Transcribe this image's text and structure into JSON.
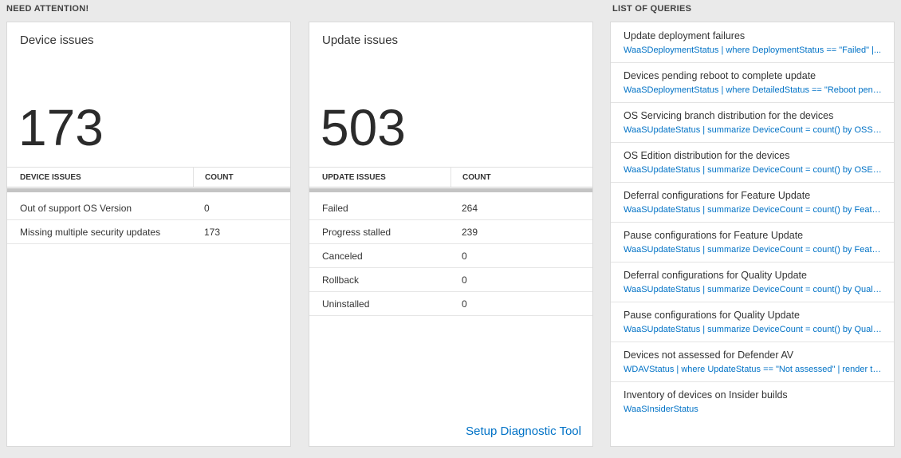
{
  "colors": {
    "link_blue": "#0072c6",
    "page_background": "#eaeaea",
    "big_number_text": "#2b2b2b"
  },
  "sections": {
    "need_attention": "NEED ATTENTION!",
    "list_of_queries": "LIST OF QUERIES"
  },
  "device_card": {
    "title": "Device issues",
    "count": "173",
    "table": {
      "headers": [
        "DEVICE ISSUES",
        "COUNT"
      ],
      "rows": [
        {
          "label": "Out of support OS Version",
          "count": "0"
        },
        {
          "label": "Missing multiple security updates",
          "count": "173"
        }
      ]
    }
  },
  "update_card": {
    "title": "Update issues",
    "count": "503",
    "table": {
      "headers": [
        "UPDATE ISSUES",
        "COUNT"
      ],
      "rows": [
        {
          "label": "Failed",
          "count": "264"
        },
        {
          "label": "Progress stalled",
          "count": "239"
        },
        {
          "label": "Canceled",
          "count": "0"
        },
        {
          "label": "Rollback",
          "count": "0"
        },
        {
          "label": "Uninstalled",
          "count": "0"
        }
      ]
    },
    "footer_link": "Setup Diagnostic Tool"
  },
  "queries_card": {
    "items": [
      {
        "title": "Update deployment failures",
        "query": "WaaSDeploymentStatus | where DeploymentStatus == \"Failed\" |..."
      },
      {
        "title": "Devices pending reboot to complete update",
        "query": "WaaSDeploymentStatus | where DetailedStatus == \"Reboot pend..."
      },
      {
        "title": "OS Servicing branch distribution for the devices",
        "query": "WaaSUpdateStatus | summarize DeviceCount = count() by OSSer..."
      },
      {
        "title": "OS Edition distribution for the devices",
        "query": "WaaSUpdateStatus | summarize DeviceCount = count() by OSEdit..."
      },
      {
        "title": "Deferral configurations for Feature Update",
        "query": "WaaSUpdateStatus | summarize DeviceCount = count() by Featur..."
      },
      {
        "title": "Pause configurations for Feature Update",
        "query": "WaaSUpdateStatus | summarize DeviceCount = count() by Featur..."
      },
      {
        "title": "Deferral configurations for Quality Update",
        "query": "WaaSUpdateStatus | summarize DeviceCount = count() by Qualit..."
      },
      {
        "title": "Pause configurations for Quality Update",
        "query": "WaaSUpdateStatus | summarize DeviceCount = count() by Qualit..."
      },
      {
        "title": "Devices not assessed for Defender AV",
        "query": "WDAVStatus | where UpdateStatus == \"Not assessed\" | render ta..."
      },
      {
        "title": "Inventory of devices on Insider builds",
        "query": "WaaSInsiderStatus"
      }
    ]
  }
}
